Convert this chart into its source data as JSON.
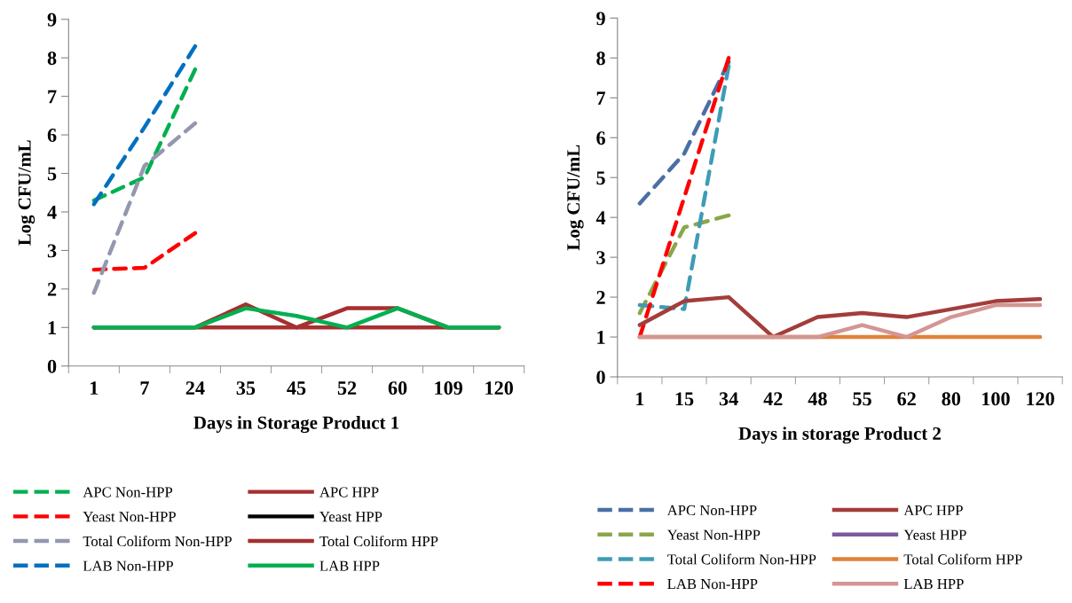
{
  "chart_data": [
    {
      "type": "line",
      "xlabel": "Days in Storage Product 1",
      "ylabel": "Log CFU/mL",
      "categories": [
        "1",
        "7",
        "24",
        "35",
        "45",
        "52",
        "60",
        "109",
        "120"
      ],
      "ylim": [
        0,
        9
      ],
      "yticks": [
        0,
        1,
        2,
        3,
        4,
        5,
        6,
        7,
        8,
        9
      ],
      "grid": false,
      "legend": "bottom",
      "marker": "none",
      "series": [
        {
          "name": "APC Non-HPP",
          "color": "#00b050",
          "line_style": "dashed",
          "values": [
            4.3,
            4.9,
            7.7,
            null,
            null,
            null,
            null,
            null,
            null
          ]
        },
        {
          "name": "Yeast Non-HPP",
          "color": "#ff0000",
          "line_style": "dashed",
          "values": [
            2.5,
            2.55,
            3.45,
            null,
            null,
            null,
            null,
            null,
            null
          ]
        },
        {
          "name": "Total Coliform Non-HPP",
          "color": "#9497b0",
          "line_style": "dashed",
          "values": [
            1.9,
            5.2,
            6.3,
            null,
            null,
            null,
            null,
            null,
            null
          ]
        },
        {
          "name": "LAB Non-HPP",
          "color": "#0070c0",
          "line_style": "dashed",
          "values": [
            4.2,
            6.2,
            8.3,
            null,
            null,
            null,
            null,
            null,
            null
          ]
        },
        {
          "name": "APC HPP",
          "color": "#a5302f",
          "line_style": "solid",
          "values": [
            1,
            1,
            1,
            1.6,
            1,
            1.5,
            1.5,
            1,
            1
          ]
        },
        {
          "name": "Yeast HPP",
          "color": "#000000",
          "line_style": "solid",
          "values": [
            null,
            null,
            null,
            null,
            null,
            null,
            null,
            null,
            null
          ]
        },
        {
          "name": "Total Coliform HPP",
          "color": "#a5302f",
          "line_style": "solid",
          "values": [
            1,
            1,
            1,
            1,
            1,
            1,
            1,
            1,
            1
          ]
        },
        {
          "name": "LAB HPP",
          "color": "#00b050",
          "line_style": "solid",
          "values": [
            1,
            1,
            1,
            1.5,
            1.3,
            1,
            1.5,
            1,
            1
          ]
        }
      ]
    },
    {
      "type": "line",
      "xlabel": "Days in storage Product 2",
      "ylabel": "Log CFU/mL",
      "categories": [
        "1",
        "15",
        "34",
        "42",
        "48",
        "55",
        "62",
        "80",
        "100",
        "120"
      ],
      "ylim": [
        0,
        9
      ],
      "yticks": [
        0,
        1,
        2,
        3,
        4,
        5,
        6,
        7,
        8,
        9
      ],
      "grid": false,
      "legend": "bottom",
      "marker": "none",
      "series": [
        {
          "name": "APC Non-HPP",
          "color": "#4a6fa5",
          "line_style": "dashed",
          "values": [
            4.35,
            5.6,
            7.9,
            null,
            null,
            null,
            null,
            null,
            null,
            null
          ]
        },
        {
          "name": "Yeast Non-HPP",
          "color": "#8aa64a",
          "line_style": "dashed",
          "values": [
            1.6,
            3.75,
            4.05,
            null,
            null,
            null,
            null,
            null,
            null,
            null
          ]
        },
        {
          "name": "Total Coliform Non-HPP",
          "color": "#3e9cb5",
          "line_style": "dashed",
          "values": [
            1.8,
            1.7,
            7.8,
            null,
            null,
            null,
            null,
            null,
            null,
            null
          ]
        },
        {
          "name": "LAB Non-HPP",
          "color": "#ff0000",
          "line_style": "dashed",
          "values": [
            1,
            4.5,
            8.0,
            null,
            null,
            null,
            null,
            null,
            null,
            null
          ]
        },
        {
          "name": "APC HPP",
          "color": "#a33d3b",
          "line_style": "solid",
          "values": [
            1.3,
            1.9,
            2.0,
            1.0,
            1.5,
            1.6,
            1.5,
            1.7,
            1.9,
            1.95
          ]
        },
        {
          "name": "Yeast HPP",
          "color": "#7a5ba0",
          "line_style": "solid",
          "values": [
            null,
            null,
            null,
            null,
            null,
            null,
            null,
            null,
            null,
            null
          ]
        },
        {
          "name": "Total Coliform HPP",
          "color": "#e0823a",
          "line_style": "solid",
          "values": [
            1,
            1,
            1,
            1,
            1,
            1,
            1,
            1,
            1,
            1
          ]
        },
        {
          "name": "LAB HPP",
          "color": "#d49594",
          "line_style": "solid",
          "values": [
            1,
            1,
            1,
            1,
            1,
            1.3,
            1,
            1.5,
            1.8,
            1.8
          ]
        }
      ]
    }
  ]
}
